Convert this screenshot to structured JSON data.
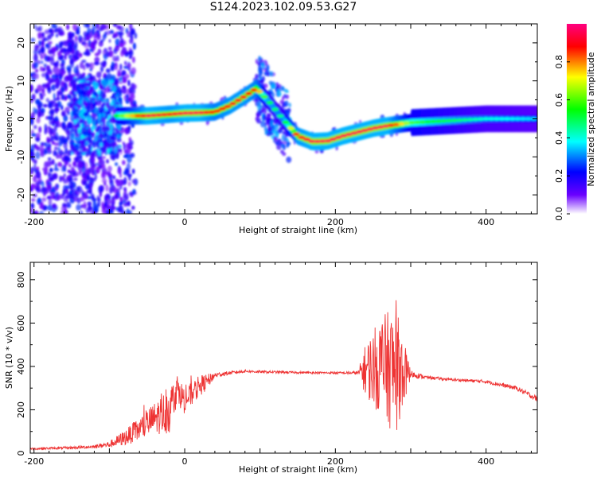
{
  "title": "S124.2023.102.09.53.G27",
  "chart_data": [
    {
      "type": "heatmap",
      "title": "S124.2023.102.09.53.G27",
      "xlabel": "Height of straight line (km)",
      "ylabel": "Frequency (Hz)",
      "xlim": [
        -205,
        468
      ],
      "ylim": [
        -25,
        25
      ],
      "x_ticks": [
        -200,
        0,
        200,
        400
      ],
      "x_tick_labels": [
        "-200",
        "0",
        "200",
        "400"
      ],
      "y_ticks": [
        -20,
        -10,
        0,
        10,
        20
      ],
      "y_tick_labels": [
        "-20",
        "-10",
        "0",
        "10",
        "20"
      ],
      "grid": false,
      "colorbar": {
        "label": "Normalized spectral amplitude",
        "range": [
          0,
          1
        ],
        "ticks": [
          0.0,
          0.2,
          0.4,
          0.6,
          0.8
        ],
        "tick_labels": [
          "0.0",
          "0.2",
          "0.4",
          "0.6",
          "0.8"
        ],
        "colors": [
          "#ffffff",
          "#6a00ff",
          "#0000ff",
          "#00ffff",
          "#00ff00",
          "#ffff00",
          "#ff0000",
          "#ff0080"
        ]
      },
      "ridge": {
        "x": [
          -90,
          -50,
          -20,
          0,
          20,
          40,
          60,
          80,
          95,
          110,
          130,
          150,
          170,
          190,
          210,
          230,
          250,
          270,
          300,
          350,
          400,
          468
        ],
        "y": [
          0.8,
          0.8,
          1.2,
          1.5,
          1.6,
          1.8,
          3.5,
          6.0,
          8.0,
          5.0,
          0.0,
          -4.5,
          -6.0,
          -5.8,
          -4.5,
          -3.5,
          -2.5,
          -1.8,
          -1.0,
          -0.5,
          0.0,
          0.0
        ],
        "amplitude": [
          0.55,
          0.95,
          0.9,
          0.95,
          0.95,
          0.85,
          0.9,
          0.9,
          0.85,
          0.5,
          0.45,
          0.9,
          0.95,
          0.95,
          0.95,
          0.95,
          0.95,
          0.95,
          0.6,
          0.5,
          0.4,
          0.35
        ]
      }
    },
    {
      "type": "line",
      "xlabel": "Height of straight line (km)",
      "ylabel": "SNR (10 * v/v)",
      "xlim": [
        -205,
        468
      ],
      "ylim": [
        0,
        880
      ],
      "x_ticks": [
        -200,
        0,
        200,
        400
      ],
      "x_tick_labels": [
        "-200",
        "0",
        "200",
        "400"
      ],
      "y_ticks": [
        0,
        200,
        400,
        600,
        800
      ],
      "y_tick_labels": [
        "0",
        "200",
        "400",
        "600",
        "800"
      ],
      "grid": false,
      "series": [
        {
          "color": "#ee3333",
          "x": [
            -205,
            -150,
            -120,
            -100,
            -80,
            -60,
            -40,
            -20,
            -10,
            0,
            20,
            30,
            40,
            60,
            80,
            100,
            150,
            200,
            230,
            240,
            260,
            280,
            300,
            320,
            350,
            400,
            440,
            468
          ],
          "y": [
            20,
            25,
            30,
            40,
            70,
            110,
            160,
            200,
            300,
            240,
            310,
            330,
            360,
            370,
            378,
            375,
            372,
            370,
            370,
            385,
            400,
            380,
            365,
            350,
            340,
            330,
            300,
            250
          ],
          "noise": [
            5,
            6,
            8,
            15,
            35,
            55,
            75,
            110,
            70,
            60,
            50,
            35,
            12,
            8,
            6,
            6,
            5,
            5,
            8,
            120,
            230,
            300,
            18,
            8,
            6,
            8,
            10,
            14
          ]
        }
      ]
    }
  ]
}
